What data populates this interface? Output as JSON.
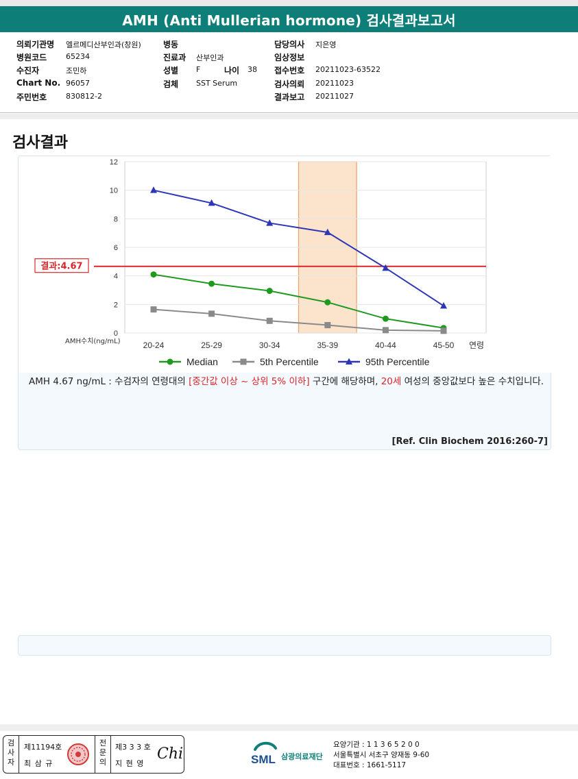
{
  "report": {
    "title": "AMH (Anti Mullerian hormone) 검사결과보고서"
  },
  "info": {
    "institution_label": "의뢰기관명",
    "institution": "엘르메디산부인과(창원)",
    "hospital_code_label": "병원코드",
    "hospital_code": "65234",
    "patient_label": "수진자",
    "patient": "조민하",
    "chart_no_label": "Chart No.",
    "chart_no": "96057",
    "resident_no_label": "주민번호",
    "resident_no": "830812-2",
    "ward_label": "병동",
    "ward": "",
    "department_label": "진료과",
    "department": "산부인과",
    "sex_label": "성별",
    "sex": "F",
    "age_label": "나이",
    "age": "38",
    "specimen_label": "검체",
    "specimen": "SST Serum",
    "doctor_label": "담당의사",
    "doctor": "지은영",
    "clinical_label": "임상정보",
    "clinical": "",
    "receipt_no_label": "접수번호",
    "receipt_no": "20211023-63522",
    "request_date_label": "검사의뢰",
    "request_date": "20211023",
    "report_date_label": "결과보고",
    "report_date": "20211027"
  },
  "section": {
    "results_title": "검사결과"
  },
  "chart_data": {
    "type": "line",
    "categories": [
      "20-24",
      "25-29",
      "30-34",
      "35-39",
      "40-44",
      "45-50"
    ],
    "x_suffix_label": "연령",
    "ylabel": "AMH수치(ng/mL)",
    "ylim": [
      0,
      12
    ],
    "yticks": [
      0,
      2,
      4,
      6,
      8,
      10,
      12
    ],
    "series": [
      {
        "name": "Median",
        "color": "#1f9a1f",
        "marker": "circle",
        "values": [
          4.1,
          3.45,
          2.95,
          2.15,
          1.0,
          0.35
        ]
      },
      {
        "name": "5th Percentile",
        "color": "#8a8a8a",
        "marker": "square",
        "values": [
          1.65,
          1.35,
          0.85,
          0.55,
          0.2,
          0.15
        ]
      },
      {
        "name": "95th Percentile",
        "color": "#2f36b5",
        "marker": "triangle",
        "values": [
          10.0,
          9.1,
          7.7,
          7.05,
          4.55,
          1.9
        ]
      }
    ],
    "result_line": {
      "value": 4.67,
      "label": "결과:4.67",
      "color": "#d9262a"
    },
    "highlight_category": "35-39",
    "highlight_color": "#fbe3cc",
    "grid": true
  },
  "interpretation": {
    "part1": "AMH  4.67 ng/mL : 수검자의 연령대의 ",
    "red1": "[중간값 이상 ~ 상위 5% 이하]",
    "part2": " 구간에 해당하며, ",
    "red2": "20세",
    "part3": " 여성의 중앙값보다 높은 수치입니다."
  },
  "reference": "[Ref. Clin Biochem 2016:260-7]",
  "signature": {
    "examiner_label": "검사자",
    "examiner_license": "제11194호",
    "examiner_name": "최 삼 규",
    "specialist_label": "전문의",
    "specialist_license": "제3 3 3 호",
    "specialist_name": "지 현 영",
    "signature_mark": "Chi"
  },
  "lab": {
    "logo_text": "SML",
    "name": "삼광의료재단",
    "care_no": "요양기관 : 1 1 3 6 5 2 0 0",
    "address": "서울특별시 서초구 양재동 9-60",
    "phone": "대표번호 : 1661-5117"
  }
}
